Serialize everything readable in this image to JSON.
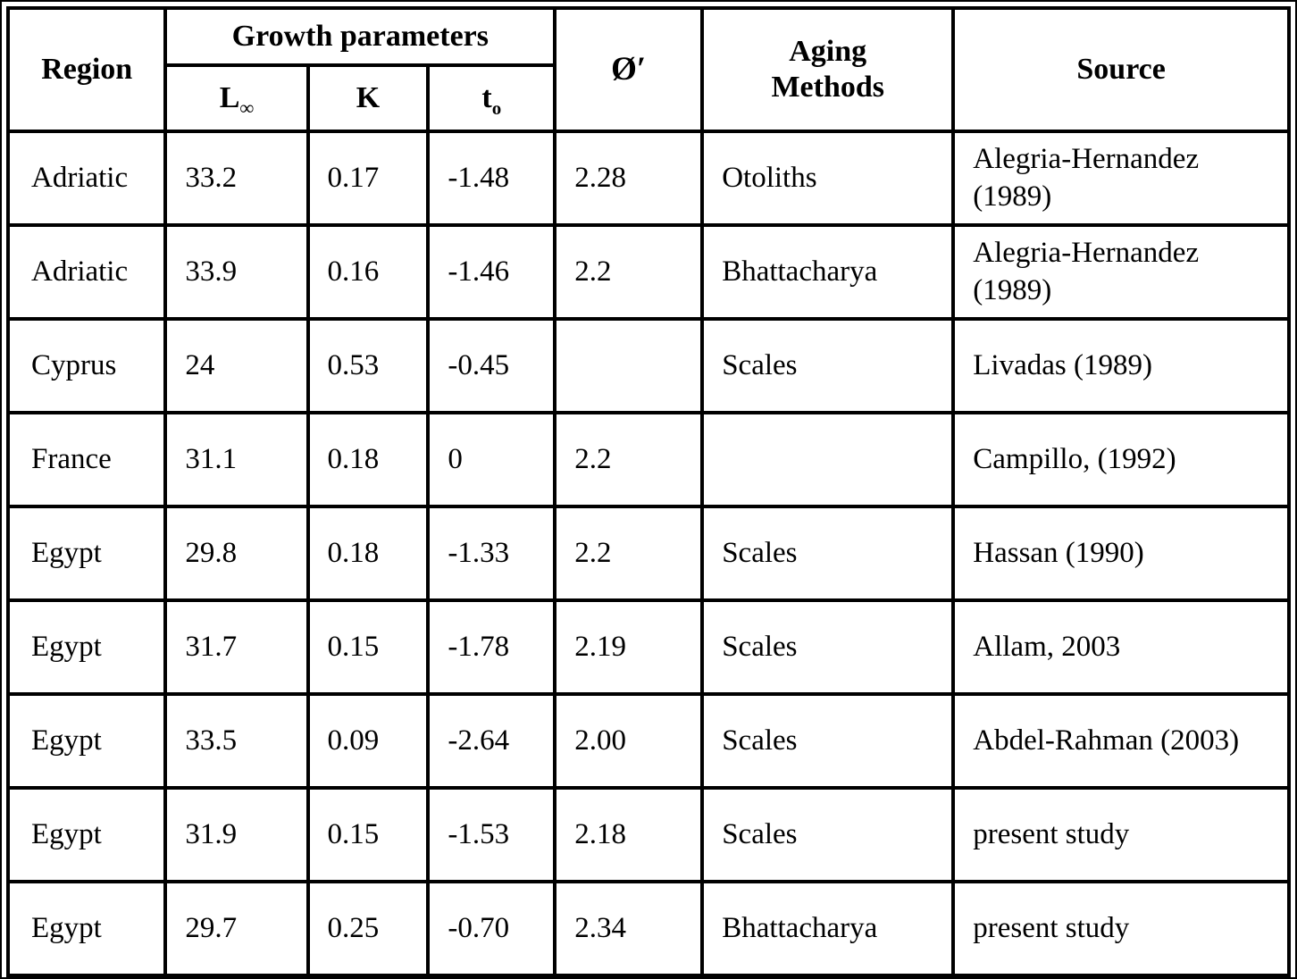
{
  "table": {
    "headers": {
      "region": "Region",
      "growth_parameters": "Growth parameters",
      "l_base": "L",
      "l_sub": "∞",
      "k": "K",
      "t_base": "t",
      "t_sub": "o",
      "phi": "Ø′",
      "aging_methods": "Aging Methods",
      "source": "Source"
    },
    "rows": [
      {
        "region": "Adriatic",
        "l_inf": "33.2",
        "k": "0.17",
        "t0": "-1.48",
        "phi": "2.28",
        "aging": "Otoliths",
        "source": "Alegria-Hernandez (1989)"
      },
      {
        "region": "Adriatic",
        "l_inf": "33.9",
        "k": "0.16",
        "t0": "-1.46",
        "phi": "2.2",
        "aging": "Bhattacharya",
        "source": "Alegria-Hernandez (1989)"
      },
      {
        "region": "Cyprus",
        "l_inf": "24",
        "k": "0.53",
        "t0": "-0.45",
        "phi": "",
        "aging": "Scales",
        "source": "Livadas (1989)"
      },
      {
        "region": "France",
        "l_inf": "31.1",
        "k": "0.18",
        "t0": "0",
        "phi": "2.2",
        "aging": "",
        "source": "Campillo, (1992)"
      },
      {
        "region": "Egypt",
        "l_inf": "29.8",
        "k": "0.18",
        "t0": "-1.33",
        "phi": "2.2",
        "aging": "Scales",
        "source": "Hassan (1990)"
      },
      {
        "region": "Egypt",
        "l_inf": "31.7",
        "k": "0.15",
        "t0": "-1.78",
        "phi": "2.19",
        "aging": "Scales",
        "source": "Allam, 2003"
      },
      {
        "region": "Egypt",
        "l_inf": "33.5",
        "k": "0.09",
        "t0": "-2.64",
        "phi": "2.00",
        "aging": "Scales",
        "source": "Abdel-Rahman (2003)"
      },
      {
        "region": "Egypt",
        "l_inf": "31.9",
        "k": "0.15",
        "t0": "-1.53",
        "phi": "2.18",
        "aging": "Scales",
        "source": "present study"
      },
      {
        "region": "Egypt",
        "l_inf": "29.7",
        "k": "0.25",
        "t0": "-0.70",
        "phi": "2.34",
        "aging": "Bhattacharya",
        "source": "present study"
      }
    ],
    "column_keys": [
      "region",
      "l_inf",
      "k",
      "t0",
      "phi",
      "aging",
      "source"
    ]
  }
}
